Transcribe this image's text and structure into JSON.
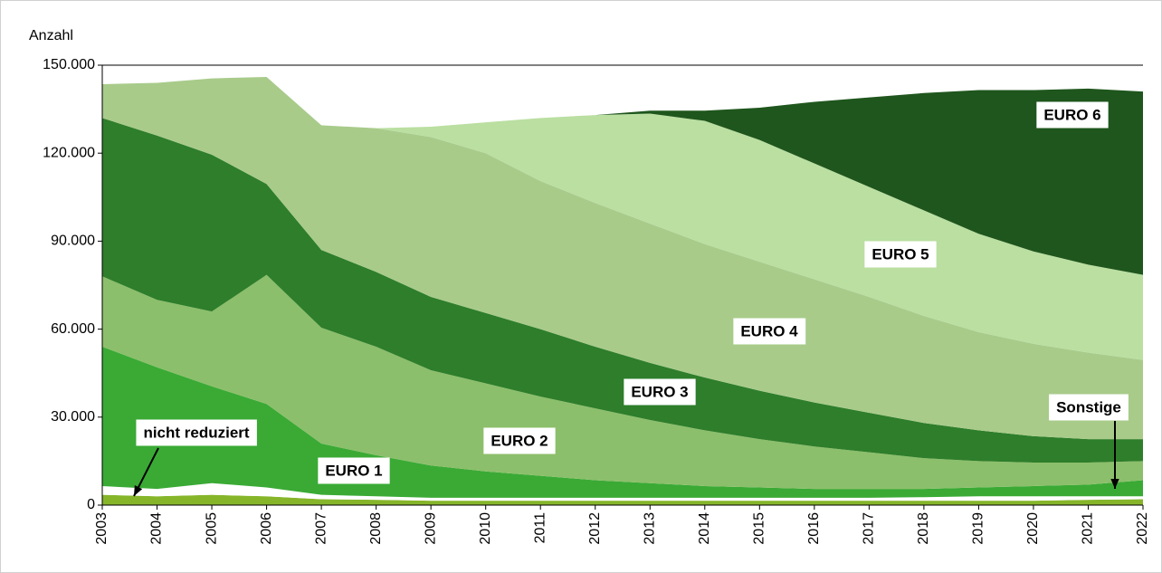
{
  "chart_data": {
    "type": "stacked_area",
    "y_label": "Anzahl",
    "categories": [
      "2003",
      "2004",
      "2005",
      "2006",
      "2007",
      "2008",
      "2009",
      "2010",
      "2011",
      "2012",
      "2013",
      "2014",
      "2015",
      "2016",
      "2017",
      "2018",
      "2019",
      "2020",
      "2021",
      "2022"
    ],
    "ylim": [
      0,
      150000
    ],
    "yticks": [
      0,
      {
        "value": 30000,
        "label": "30.000"
      },
      {
        "value": 60000,
        "label": "60.000"
      },
      {
        "value": 90000,
        "label": "90.000"
      },
      {
        "value": 120000,
        "label": "120.000"
      },
      {
        "value": 150000,
        "label": "150.000"
      }
    ],
    "grid": false,
    "series": [
      {
        "name": "nicht reduziert",
        "color": "#86b52a",
        "values": [
          3500,
          3000,
          3500,
          3000,
          2000,
          1800,
          1500,
          1500,
          1500,
          1500,
          1500,
          1500,
          1500,
          1500,
          1500,
          1500,
          1500,
          1500,
          1800,
          2000
        ]
      },
      {
        "name": "Sonstige",
        "color": "#ffffff",
        "values": [
          3000,
          2500,
          4000,
          3000,
          1500,
          1200,
          1000,
          1000,
          1000,
          1000,
          1000,
          1000,
          1000,
          1000,
          1000,
          1200,
          1500,
          1500,
          1200,
          1000
        ]
      },
      {
        "name": "EURO 1",
        "color": "#3aaa35",
        "values": [
          47500,
          41500,
          33000,
          28500,
          17500,
          14000,
          11000,
          9000,
          7500,
          6000,
          5000,
          4000,
          3500,
          3000,
          3000,
          2800,
          3000,
          3500,
          4000,
          5500
        ]
      },
      {
        "name": "EURO 2",
        "color": "#8cbf6b",
        "values": [
          24000,
          23000,
          25500,
          44000,
          39500,
          37000,
          32500,
          30000,
          27000,
          24500,
          21500,
          19000,
          16500,
          14500,
          12500,
          10500,
          9000,
          8000,
          7500,
          6500
        ]
      },
      {
        "name": "EURO 3",
        "color": "#2e7e2b",
        "values": [
          54000,
          56000,
          53500,
          31000,
          26500,
          25500,
          25000,
          24000,
          23000,
          21000,
          19500,
          18000,
          16500,
          15000,
          13500,
          12000,
          10500,
          9000,
          8000,
          7500
        ]
      },
      {
        "name": "EURO 4",
        "color": "#a8cb8a",
        "values": [
          11500,
          18000,
          26000,
          36500,
          42500,
          49000,
          54500,
          54500,
          50500,
          49000,
          47500,
          45500,
          44000,
          42000,
          39500,
          36500,
          33500,
          31500,
          29500,
          27000
        ]
      },
      {
        "name": "EURO 5",
        "color": "#badfa1",
        "values": [
          0,
          0,
          0,
          0,
          0,
          0,
          3500,
          10500,
          21500,
          30000,
          37500,
          42000,
          41500,
          39500,
          37500,
          36000,
          33500,
          31500,
          30000,
          29000
        ]
      },
      {
        "name": "EURO 6",
        "color": "#1f561d",
        "values": [
          0,
          0,
          0,
          0,
          0,
          0,
          0,
          0,
          0,
          0,
          1000,
          3500,
          11000,
          21000,
          30500,
          40000,
          49000,
          55000,
          60000,
          62500
        ]
      }
    ]
  }
}
